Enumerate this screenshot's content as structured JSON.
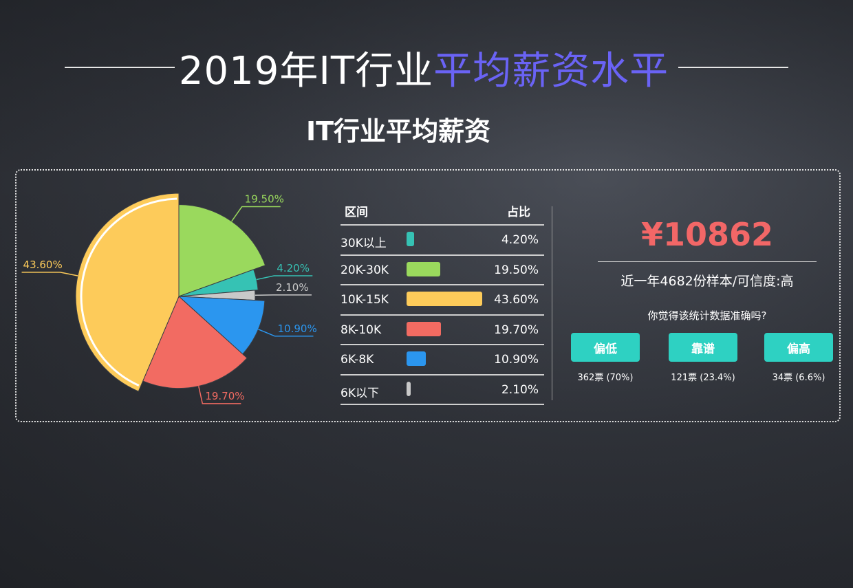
{
  "header": {
    "title_prefix": "2019年IT行业",
    "title_accent": "平均薪资水平"
  },
  "chart_data": {
    "type": "pie",
    "title": "IT行业平均薪资",
    "slices": [
      {
        "label": "20K-30K",
        "value": 19.5,
        "display": "19.50%",
        "color": "#9ad95d"
      },
      {
        "label": "30K以上",
        "value": 4.2,
        "display": "4.20%",
        "color": "#36c2b4"
      },
      {
        "label": "6K以下",
        "value": 2.1,
        "display": "2.10%",
        "color": "#c9c9c9"
      },
      {
        "label": "6K-8K",
        "value": 10.9,
        "display": "10.90%",
        "color": "#2b96ef"
      },
      {
        "label": "8K-10K",
        "value": 19.7,
        "display": "19.70%",
        "color": "#f26b62"
      },
      {
        "label": "10K-15K",
        "value": 43.6,
        "display": "43.60%",
        "color": "#fdcb5a"
      }
    ],
    "legend": "table-right"
  },
  "table": {
    "col_range": "区间",
    "col_pct": "占比",
    "rows": [
      {
        "range": "30K以上",
        "pct": "4.20%",
        "value": 4.2,
        "color": "#36c2b4"
      },
      {
        "range": "20K-30K",
        "pct": "19.50%",
        "value": 19.5,
        "color": "#9ad95d"
      },
      {
        "range": "10K-15K",
        "pct": "43.60%",
        "value": 43.6,
        "color": "#fdcb5a"
      },
      {
        "range": "8K-10K",
        "pct": "19.70%",
        "value": 19.7,
        "color": "#f26b62"
      },
      {
        "range": "6K-8K",
        "pct": "10.90%",
        "value": 10.9,
        "color": "#2b96ef"
      },
      {
        "range": "6K以下",
        "pct": "2.10%",
        "value": 2.1,
        "color": "#c9c9c9"
      }
    ]
  },
  "summary": {
    "price": "¥10862",
    "sample": "近一年4682份样本/可信度:高",
    "question": "你觉得该统计数据准确吗?",
    "votes": [
      {
        "label": "偏低",
        "count": "362票 (70%)"
      },
      {
        "label": "靠谱",
        "count": "121票 (23.4%)"
      },
      {
        "label": "偏高",
        "count": "34票 (6.6%)"
      }
    ]
  }
}
